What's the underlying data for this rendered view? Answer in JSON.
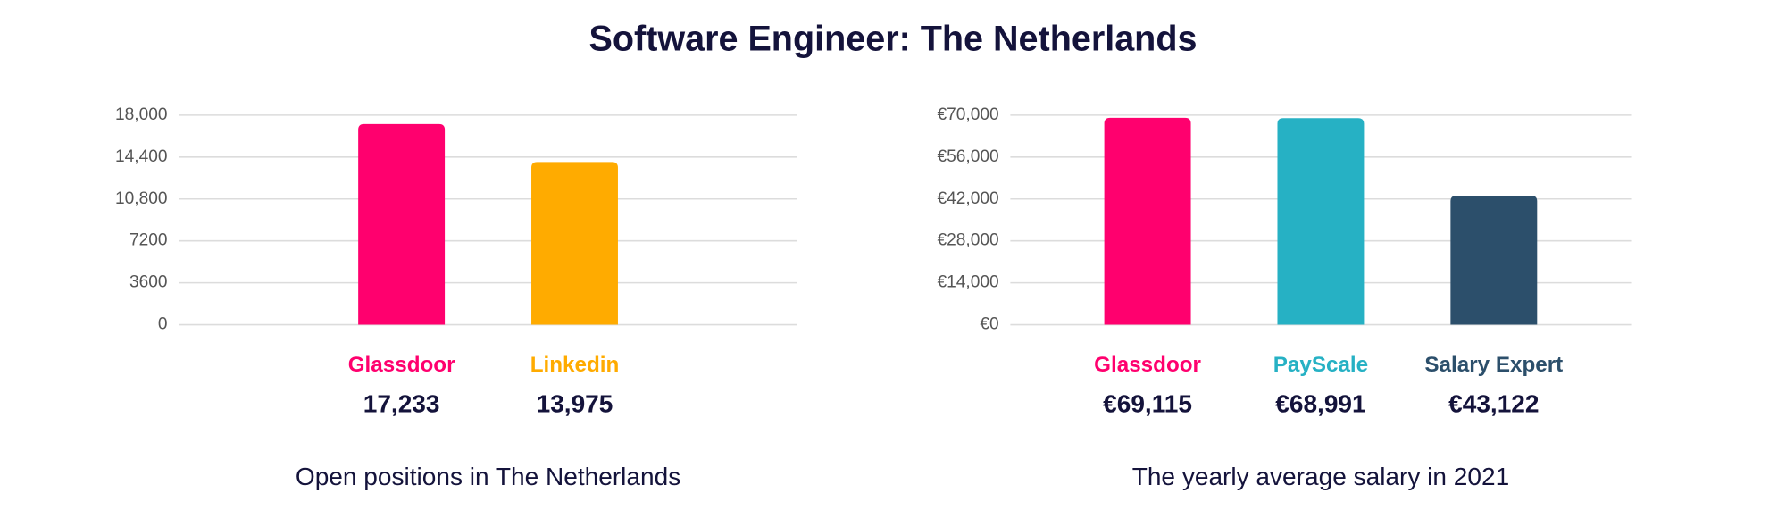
{
  "title": "Software Engineer: The Netherlands",
  "chart_data": [
    {
      "type": "bar",
      "subtitle": "Open positions in The Netherlands",
      "categories": [
        "Glassdoor",
        "Linkedin"
      ],
      "values": [
        17233,
        13975
      ],
      "value_labels": [
        "17,233",
        "13,975"
      ],
      "colors": [
        "#ff006e",
        "#ffab00"
      ],
      "ylim": [
        0,
        18000
      ],
      "yticks": [
        0,
        3600,
        7200,
        {
          "value": 10800,
          "label": "10,800"
        },
        {
          "value": 14400,
          "label": "14,400"
        },
        {
          "value": 18000,
          "label": "18,000"
        }
      ],
      "grid": true
    },
    {
      "type": "bar",
      "subtitle": "The yearly average salary in 2021",
      "categories": [
        "Glassdoor",
        "PayScale",
        "Salary Expert"
      ],
      "values": [
        69115,
        68991,
        43122
      ],
      "value_labels": [
        "€69,115",
        "€68,991",
        "€43,122"
      ],
      "colors": [
        "#ff006e",
        "#26b1c4",
        "#2c4f6b"
      ],
      "ylim": [
        0,
        70000
      ],
      "yticks": [
        {
          "value": 0,
          "label": "€0"
        },
        {
          "value": 14000,
          "label": "€14,000"
        },
        {
          "value": 28000,
          "label": "€28,000"
        },
        {
          "value": 42000,
          "label": "€42,000"
        },
        {
          "value": 56000,
          "label": "€56,000"
        },
        {
          "value": 70000,
          "label": "€70,000"
        }
      ],
      "grid": true
    }
  ]
}
